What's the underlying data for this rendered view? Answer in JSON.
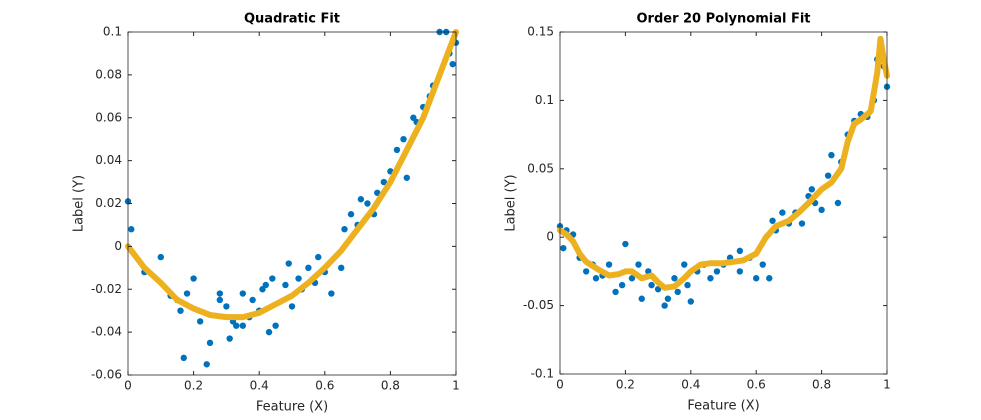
{
  "chart_data": [
    {
      "type": "scatter",
      "title": "Quadratic Fit",
      "xlabel": "Feature (X)",
      "ylabel": "Label (Y)",
      "xlim": [
        0,
        1
      ],
      "ylim": [
        -0.06,
        0.1
      ],
      "xticks": [
        0,
        0.2,
        0.4,
        0.6,
        0.8,
        1
      ],
      "yticks": [
        -0.06,
        -0.04,
        -0.02,
        0,
        0.02,
        0.04,
        0.06,
        0.08,
        0.1
      ],
      "grid": false,
      "series": [
        {
          "mode": "markers",
          "color": "#0072BD",
          "x": [
            0,
            0.01,
            0.05,
            0.1,
            0.13,
            0.15,
            0.16,
            0.17,
            0.18,
            0.2,
            0.22,
            0.24,
            0.25,
            0.28,
            0.28,
            0.3,
            0.31,
            0.32,
            0.33,
            0.35,
            0.35,
            0.37,
            0.38,
            0.4,
            0.41,
            0.42,
            0.43,
            0.44,
            0.45,
            0.48,
            0.49,
            0.5,
            0.52,
            0.53,
            0.55,
            0.57,
            0.58,
            0.6,
            0.62,
            0.65,
            0.66,
            0.68,
            0.7,
            0.71,
            0.73,
            0.75,
            0.76,
            0.78,
            0.8,
            0.82,
            0.84,
            0.85,
            0.87,
            0.88,
            0.9,
            0.92,
            0.93,
            0.95,
            0.97,
            0.98,
            0.99,
            1.0
          ],
          "values": [
            0.021,
            0.008,
            -0.012,
            -0.005,
            -0.023,
            -0.025,
            -0.03,
            -0.052,
            -0.022,
            -0.015,
            -0.035,
            -0.055,
            -0.045,
            -0.022,
            -0.025,
            -0.028,
            -0.043,
            -0.035,
            -0.037,
            -0.022,
            -0.037,
            -0.033,
            -0.025,
            -0.03,
            -0.02,
            -0.018,
            -0.04,
            -0.015,
            -0.037,
            -0.018,
            -0.008,
            -0.028,
            -0.015,
            -0.02,
            -0.01,
            -0.017,
            -0.005,
            -0.012,
            -0.022,
            -0.01,
            0.008,
            0.015,
            0.01,
            0.022,
            0.02,
            0.015,
            0.025,
            0.03,
            0.035,
            0.045,
            0.05,
            0.032,
            0.06,
            0.058,
            0.065,
            0.07,
            0.075,
            0.1,
            0.1,
            0.09,
            0.085,
            0.095
          ]
        },
        {
          "mode": "line",
          "color": "#EDB120",
          "x": [
            0,
            0.05,
            0.1,
            0.15,
            0.2,
            0.25,
            0.3,
            0.35,
            0.4,
            0.45,
            0.5,
            0.55,
            0.6,
            0.65,
            0.7,
            0.75,
            0.8,
            0.85,
            0.9,
            0.95,
            1.0
          ],
          "values": [
            0,
            -0.01,
            -0.017,
            -0.025,
            -0.029,
            -0.032,
            -0.033,
            -0.033,
            -0.031,
            -0.027,
            -0.023,
            -0.017,
            -0.01,
            -0.002,
            0.008,
            0.018,
            0.03,
            0.045,
            0.06,
            0.08,
            0.1
          ]
        }
      ]
    },
    {
      "type": "scatter",
      "title": "Order 20 Polynomial Fit",
      "xlabel": "Feature (X)",
      "ylabel": "Label (Y)",
      "xlim": [
        0,
        1
      ],
      "ylim": [
        -0.1,
        0.15
      ],
      "xticks": [
        0,
        0.2,
        0.4,
        0.6,
        0.8,
        1
      ],
      "yticks": [
        -0.1,
        -0.05,
        0,
        0.05,
        0.1,
        0.15
      ],
      "grid": false,
      "series": [
        {
          "mode": "markers",
          "color": "#0072BD",
          "x": [
            0,
            0.01,
            0.02,
            0.04,
            0.06,
            0.08,
            0.1,
            0.11,
            0.13,
            0.15,
            0.17,
            0.19,
            0.2,
            0.22,
            0.24,
            0.25,
            0.27,
            0.28,
            0.3,
            0.32,
            0.33,
            0.35,
            0.36,
            0.38,
            0.39,
            0.4,
            0.42,
            0.44,
            0.46,
            0.48,
            0.5,
            0.52,
            0.55,
            0.55,
            0.58,
            0.6,
            0.62,
            0.64,
            0.65,
            0.66,
            0.68,
            0.7,
            0.72,
            0.74,
            0.76,
            0.77,
            0.78,
            0.8,
            0.82,
            0.83,
            0.85,
            0.86,
            0.88,
            0.9,
            0.92,
            0.94,
            0.96,
            0.97,
            0.98,
            0.99,
            1.0
          ],
          "values": [
            0.008,
            -0.008,
            0.005,
            0.002,
            -0.015,
            -0.025,
            -0.02,
            -0.03,
            -0.028,
            -0.02,
            -0.04,
            -0.035,
            -0.005,
            -0.03,
            -0.02,
            -0.045,
            -0.025,
            -0.035,
            -0.038,
            -0.05,
            -0.045,
            -0.03,
            -0.04,
            -0.02,
            -0.035,
            -0.047,
            -0.025,
            -0.02,
            -0.03,
            -0.025,
            -0.02,
            -0.015,
            -0.025,
            -0.01,
            -0.015,
            -0.03,
            -0.02,
            -0.03,
            0.012,
            0.005,
            0.018,
            0.01,
            0.018,
            0.01,
            0.03,
            0.035,
            0.025,
            0.02,
            0.045,
            0.06,
            0.025,
            0.055,
            0.075,
            0.085,
            0.09,
            0.088,
            0.1,
            0.13,
            0.14,
            0.125,
            0.11
          ]
        },
        {
          "mode": "line",
          "color": "#EDB120",
          "x": [
            0,
            0.02,
            0.04,
            0.06,
            0.08,
            0.1,
            0.12,
            0.15,
            0.18,
            0.2,
            0.22,
            0.25,
            0.28,
            0.3,
            0.32,
            0.35,
            0.38,
            0.4,
            0.43,
            0.46,
            0.5,
            0.53,
            0.56,
            0.6,
            0.63,
            0.66,
            0.7,
            0.73,
            0.76,
            0.8,
            0.83,
            0.86,
            0.88,
            0.9,
            0.92,
            0.95,
            0.97,
            0.98,
            0.99,
            1.0
          ],
          "values": [
            0.005,
            0.002,
            -0.003,
            -0.012,
            -0.018,
            -0.021,
            -0.024,
            -0.028,
            -0.027,
            -0.025,
            -0.025,
            -0.03,
            -0.028,
            -0.033,
            -0.037,
            -0.036,
            -0.03,
            -0.025,
            -0.02,
            -0.019,
            -0.019,
            -0.018,
            -0.017,
            -0.012,
            0.0,
            0.008,
            0.012,
            0.018,
            0.025,
            0.035,
            0.04,
            0.05,
            0.07,
            0.083,
            0.086,
            0.092,
            0.12,
            0.145,
            0.13,
            0.118
          ]
        }
      ]
    }
  ]
}
